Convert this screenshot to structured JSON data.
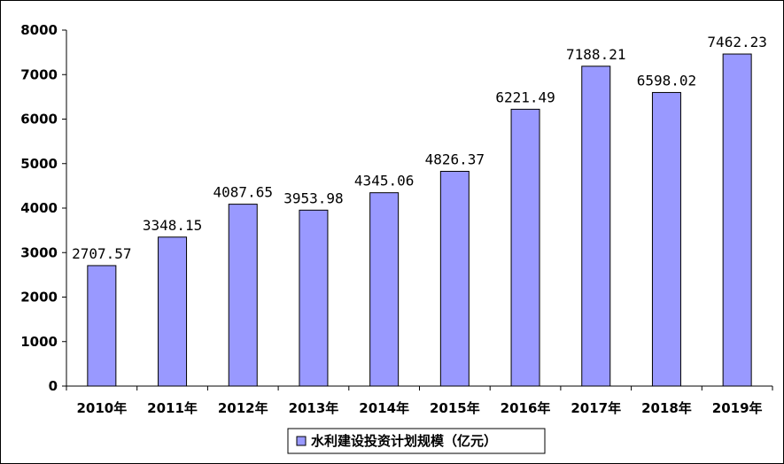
{
  "chart_data": {
    "type": "bar",
    "title": "",
    "xlabel": "",
    "ylabel": "",
    "categories": [
      "2010年",
      "2011年",
      "2012年",
      "2013年",
      "2014年",
      "2015年",
      "2016年",
      "2017年",
      "2018年",
      "2019年"
    ],
    "series": [
      {
        "name": "水利建设投资计划规模（亿元）",
        "values": [
          2707.57,
          3348.15,
          4087.65,
          3953.98,
          4345.06,
          4826.37,
          6221.49,
          7188.21,
          6598.02,
          7462.23
        ],
        "labels": [
          "2707.57",
          "3348.15",
          "4087.65",
          "3953.98",
          "4345.06",
          "4826.37",
          "6221.49",
          "7188.21",
          "6598.02",
          "7462.23"
        ],
        "color": "#9999ff"
      }
    ],
    "ylim": [
      0,
      8000
    ],
    "yticks": [
      0,
      1000,
      2000,
      3000,
      4000,
      5000,
      6000,
      7000,
      8000
    ],
    "grid": false,
    "legend": "bottom"
  }
}
